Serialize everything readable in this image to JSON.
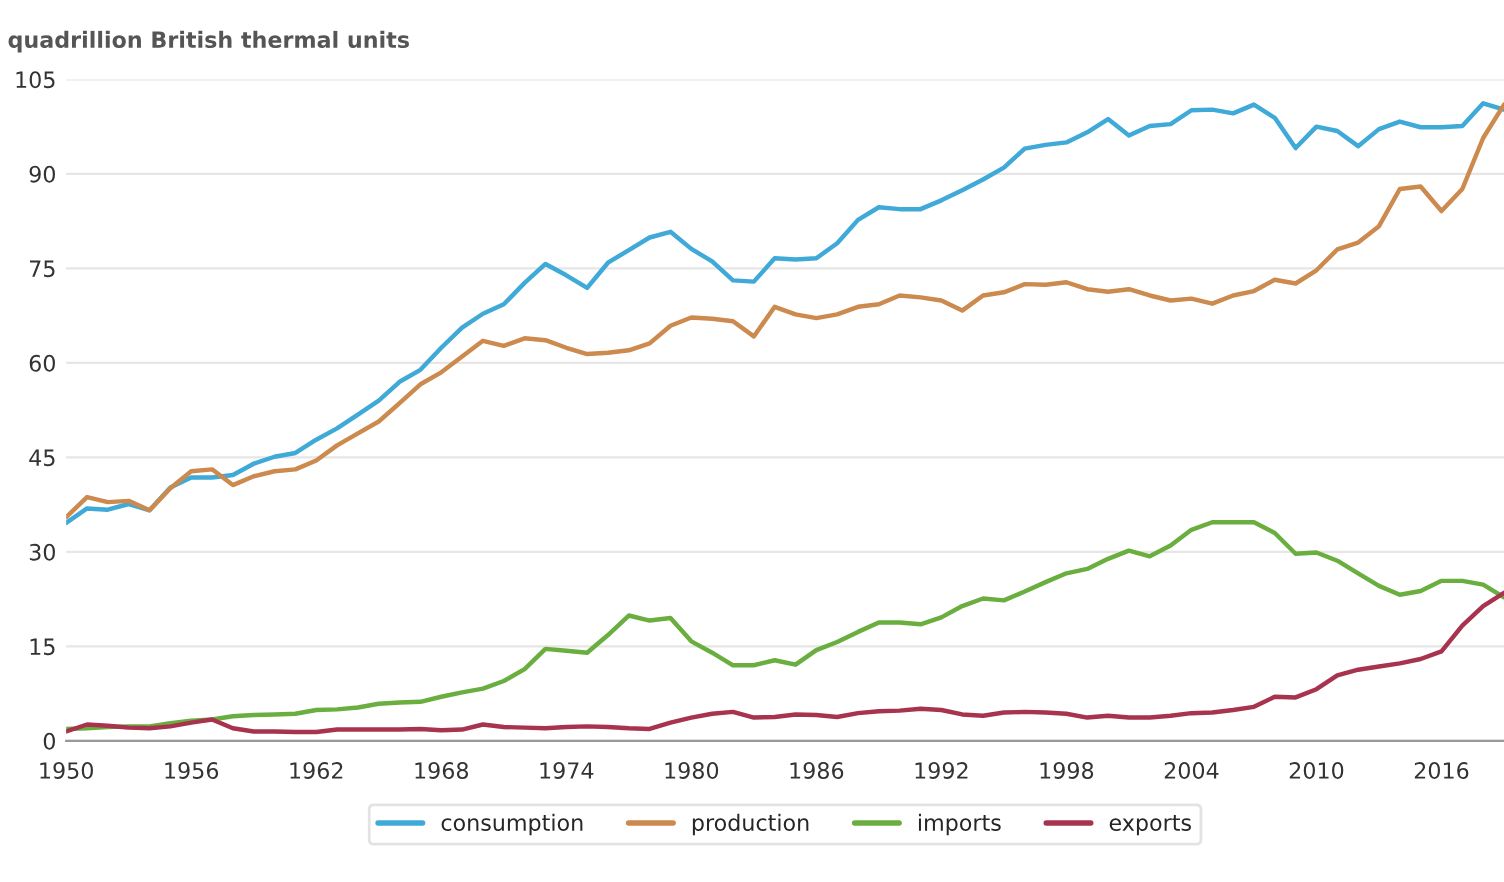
{
  "chart_data": {
    "type": "line",
    "title": "quadrillion British thermal units",
    "x": [
      1950,
      1951,
      1952,
      1953,
      1954,
      1955,
      1956,
      1957,
      1958,
      1959,
      1960,
      1961,
      1962,
      1963,
      1964,
      1965,
      1966,
      1967,
      1968,
      1969,
      1970,
      1971,
      1972,
      1973,
      1974,
      1975,
      1976,
      1977,
      1978,
      1979,
      1980,
      1981,
      1982,
      1983,
      1984,
      1985,
      1986,
      1987,
      1988,
      1989,
      1990,
      1991,
      1992,
      1993,
      1994,
      1995,
      1996,
      1997,
      1998,
      1999,
      2000,
      2001,
      2002,
      2003,
      2004,
      2005,
      2006,
      2007,
      2008,
      2009,
      2010,
      2011,
      2012,
      2013,
      2014,
      2015,
      2016,
      2017,
      2018,
      2019
    ],
    "series": [
      {
        "name": "consumption",
        "color": "#3fa9d8",
        "values": [
          34.6,
          36.9,
          36.7,
          37.6,
          36.6,
          40.2,
          41.8,
          41.8,
          42.2,
          44.0,
          45.1,
          45.7,
          47.8,
          49.6,
          51.8,
          54.0,
          57.0,
          58.9,
          62.4,
          65.6,
          67.8,
          69.3,
          72.7,
          75.7,
          73.9,
          71.9,
          75.9,
          77.9,
          79.9,
          80.8,
          78.1,
          76.1,
          73.1,
          72.9,
          76.6,
          76.4,
          76.6,
          79.0,
          82.7,
          84.7,
          84.4,
          84.4,
          85.8,
          87.4,
          89.1,
          91.0,
          94.0,
          94.6,
          95.0,
          96.6,
          98.7,
          96.1,
          97.6,
          97.9,
          100.1,
          100.2,
          99.6,
          101.0,
          98.9,
          94.1,
          97.5,
          96.8,
          94.4,
          97.1,
          98.3,
          97.4,
          97.4,
          97.6,
          101.2,
          100.2
        ]
      },
      {
        "name": "production",
        "color": "#cc8a4e",
        "values": [
          35.5,
          38.7,
          37.9,
          38.1,
          36.6,
          40.1,
          42.8,
          43.1,
          40.6,
          42.0,
          42.8,
          43.1,
          44.5,
          46.9,
          48.8,
          50.7,
          53.6,
          56.6,
          58.5,
          61.0,
          63.5,
          62.7,
          63.9,
          63.6,
          62.4,
          61.4,
          61.6,
          62.0,
          63.1,
          65.9,
          67.2,
          67.0,
          66.6,
          64.2,
          68.9,
          67.7,
          67.1,
          67.7,
          68.9,
          69.3,
          70.7,
          70.4,
          69.9,
          68.3,
          70.7,
          71.2,
          72.5,
          72.4,
          72.8,
          71.7,
          71.3,
          71.7,
          70.7,
          69.9,
          70.2,
          69.4,
          70.7,
          71.4,
          73.2,
          72.6,
          74.7,
          78.0,
          79.1,
          81.7,
          87.6,
          88.0,
          84.1,
          87.6,
          95.7,
          101.0
        ]
      },
      {
        "name": "imports",
        "color": "#6aae3f",
        "values": [
          1.9,
          2.0,
          2.2,
          2.3,
          2.3,
          2.8,
          3.2,
          3.4,
          3.9,
          4.1,
          4.2,
          4.3,
          4.9,
          5.0,
          5.3,
          5.9,
          6.1,
          6.2,
          7.0,
          7.7,
          8.3,
          9.5,
          11.4,
          14.6,
          14.3,
          14.0,
          16.8,
          19.9,
          19.1,
          19.5,
          15.8,
          14.0,
          12.0,
          12.0,
          12.8,
          12.1,
          14.4,
          15.7,
          17.3,
          18.8,
          18.8,
          18.5,
          19.6,
          21.4,
          22.6,
          22.3,
          23.7,
          25.2,
          26.6,
          27.3,
          28.9,
          30.2,
          29.3,
          31.0,
          33.5,
          34.7,
          34.7,
          34.7,
          33.0,
          29.7,
          29.9,
          28.6,
          26.6,
          24.6,
          23.2,
          23.8,
          25.4,
          25.4,
          24.8,
          22.8
        ]
      },
      {
        "name": "exports",
        "color": "#a8334e",
        "values": [
          1.5,
          2.6,
          2.4,
          2.1,
          2.0,
          2.3,
          2.9,
          3.4,
          2.0,
          1.5,
          1.5,
          1.4,
          1.4,
          1.8,
          1.8,
          1.8,
          1.8,
          1.9,
          1.7,
          1.8,
          2.6,
          2.2,
          2.1,
          2.0,
          2.2,
          2.3,
          2.2,
          2.0,
          1.9,
          2.9,
          3.7,
          4.3,
          4.6,
          3.7,
          3.8,
          4.2,
          4.1,
          3.8,
          4.4,
          4.7,
          4.8,
          5.1,
          4.9,
          4.2,
          4.0,
          4.5,
          4.6,
          4.5,
          4.3,
          3.7,
          4.0,
          3.7,
          3.7,
          4.0,
          4.4,
          4.5,
          4.9,
          5.4,
          7.0,
          6.9,
          8.2,
          10.4,
          11.3,
          11.8,
          12.3,
          13.0,
          14.2,
          18.3,
          21.4,
          23.5
        ]
      }
    ],
    "xlim": [
      1950,
      2019
    ],
    "xticks": [
      1950,
      1956,
      1962,
      1968,
      1974,
      1980,
      1986,
      1992,
      1998,
      2004,
      2010,
      2016
    ],
    "ylim": [
      0,
      105
    ],
    "yticks": [
      0,
      15,
      30,
      45,
      60,
      75,
      90,
      105
    ],
    "grid": "y",
    "legend": "bottom",
    "marker": "none",
    "line_style": "solid"
  }
}
